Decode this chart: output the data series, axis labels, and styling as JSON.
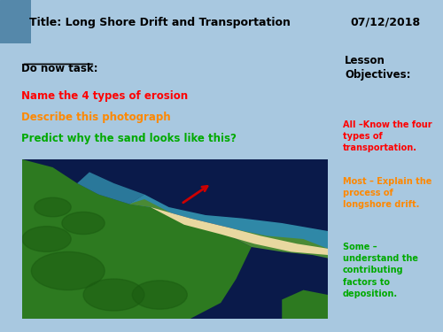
{
  "title": "Title: Long Shore Drift and Transportation",
  "date": "07/12/2018",
  "bg_color": "#a8c8e0",
  "header_bg": "#ffffff",
  "header_border": "#000000",
  "do_now_title": "Do now task:",
  "task_lines": [
    {
      "text": "Name the 4 types of erosion",
      "color": "#ff0000"
    },
    {
      "text": "Describe this photograph",
      "color": "#ff8800"
    },
    {
      "text": "Predict why the sand looks like this?",
      "color": "#00aa00"
    }
  ],
  "lesson_obj_title": "Lesson\nObjectives:",
  "objectives": [
    {
      "text": "All –Know the four types of transportation.",
      "color": "#ff0000"
    },
    {
      "text": "Most – Explain the process of longshore drift.",
      "color": "#ff8800"
    },
    {
      "text": "Some – understand the contributing factors to deposition.",
      "color": "#00aa00"
    }
  ],
  "right_panel_bg": "#ffffff",
  "right_panel_border": "#000000",
  "left_panel_bg": "#ffffff",
  "left_panel_border": "#ff0000",
  "task_box_border": "#ff0000"
}
